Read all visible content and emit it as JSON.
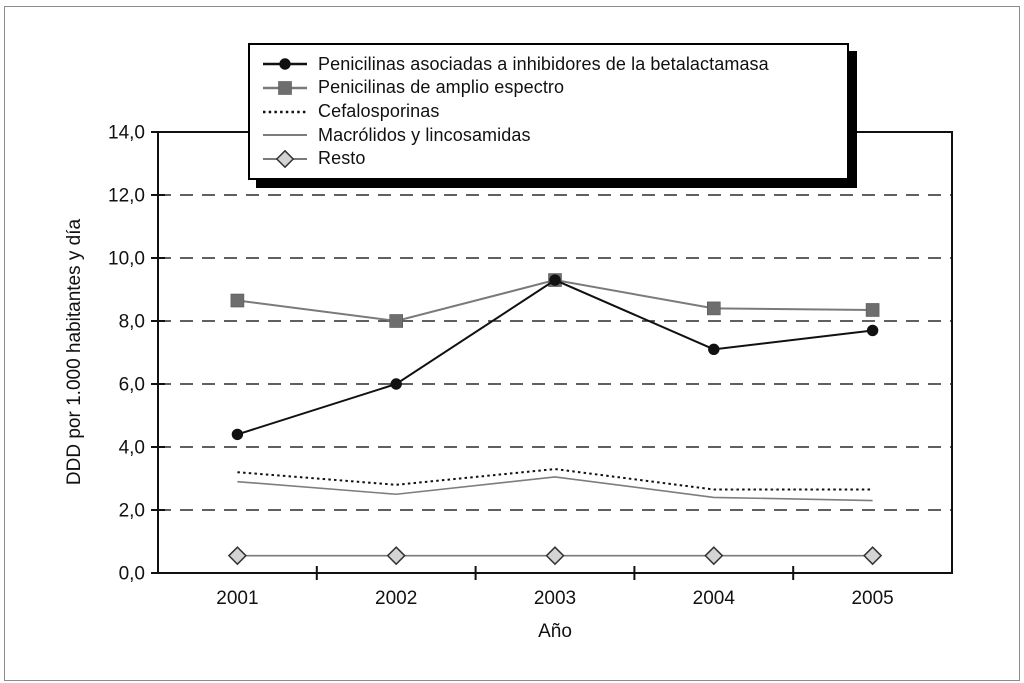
{
  "figure": {
    "background": "#ffffff",
    "border_color": "#8c8c8c"
  },
  "chart_data": {
    "type": "line",
    "title": "",
    "xlabel": "Año",
    "ylabel": "DDD por 1.000 habitantes y día",
    "categories": [
      "2001",
      "2002",
      "2003",
      "2004",
      "2005"
    ],
    "ylim": [
      0,
      14
    ],
    "y_tick_step": 2,
    "y_tick_labels": [
      "0,0",
      "2,0",
      "4,0",
      "6,0",
      "8,0",
      "10,0",
      "12,0",
      "14,0"
    ],
    "grid": "horizontal-dashed",
    "legend_position": "top-center",
    "axis_color": "#111111",
    "series": [
      {
        "name": "Penicilinas asociadas a inhibidores de la betalactamasa",
        "color": "#111111",
        "marker": "circle",
        "marker_color": "#111111",
        "line_style": "solid",
        "line_width": 2,
        "values": [
          4.4,
          6.0,
          9.3,
          7.1,
          7.7
        ]
      },
      {
        "name": "Penicilinas de amplio espectro",
        "color": "#7a7a7a",
        "marker": "square",
        "marker_color": "#6e6e6e",
        "line_style": "solid",
        "line_width": 2,
        "values": [
          8.65,
          8.0,
          9.3,
          8.4,
          8.35
        ]
      },
      {
        "name": "Cefalosporinas",
        "color": "#111111",
        "marker": "none",
        "marker_color": "",
        "line_style": "dotted",
        "line_width": 2,
        "values": [
          3.2,
          2.8,
          3.3,
          2.65,
          2.65
        ]
      },
      {
        "name": "Macrólidos y lincosamidas",
        "color": "#7d7d7d",
        "marker": "none",
        "marker_color": "",
        "line_style": "solid",
        "line_width": 1.6,
        "values": [
          2.9,
          2.5,
          3.05,
          2.4,
          2.3
        ]
      },
      {
        "name": "Resto",
        "color": "#7a7a7a",
        "marker": "diamond",
        "marker_color": "#d4d4d4",
        "marker_stroke": "#333333",
        "line_style": "solid",
        "line_width": 1.6,
        "values": [
          0.55,
          0.55,
          0.55,
          0.55,
          0.55
        ]
      }
    ]
  }
}
